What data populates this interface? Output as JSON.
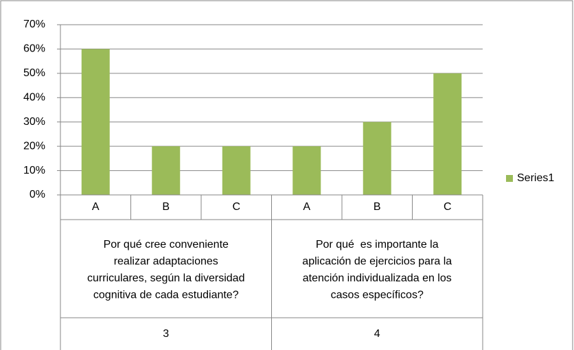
{
  "chart_data": {
    "type": "bar",
    "categories": [
      "A",
      "B",
      "C",
      "A",
      "B",
      "C"
    ],
    "groups": [
      {
        "label": [
          "Por qué cree conveniente",
          "realizar adaptaciones",
          "curriculares, según la diversidad",
          "cognitiva de cada estudiante?"
        ],
        "name": "3"
      },
      {
        "label": [
          "Por qué  es importante la",
          "aplicación de ejercicios para la",
          "atención individualizada en los",
          "casos específicos?"
        ],
        "name": "4"
      }
    ],
    "series": [
      {
        "name": "Series1",
        "color": "#9bbb59",
        "values": [
          60,
          20,
          20,
          20,
          30,
          50
        ]
      }
    ],
    "ylim": [
      0,
      70
    ],
    "yticks": [
      {
        "value": 0,
        "label": "0%"
      },
      {
        "value": 10,
        "label": "10%"
      },
      {
        "value": 20,
        "label": "20%"
      },
      {
        "value": 30,
        "label": "30%"
      },
      {
        "value": 40,
        "label": "40%"
      },
      {
        "value": 50,
        "label": "50%"
      },
      {
        "value": 60,
        "label": "60%"
      },
      {
        "value": 70,
        "label": "70%"
      }
    ],
    "grid": true,
    "legend": "right"
  }
}
